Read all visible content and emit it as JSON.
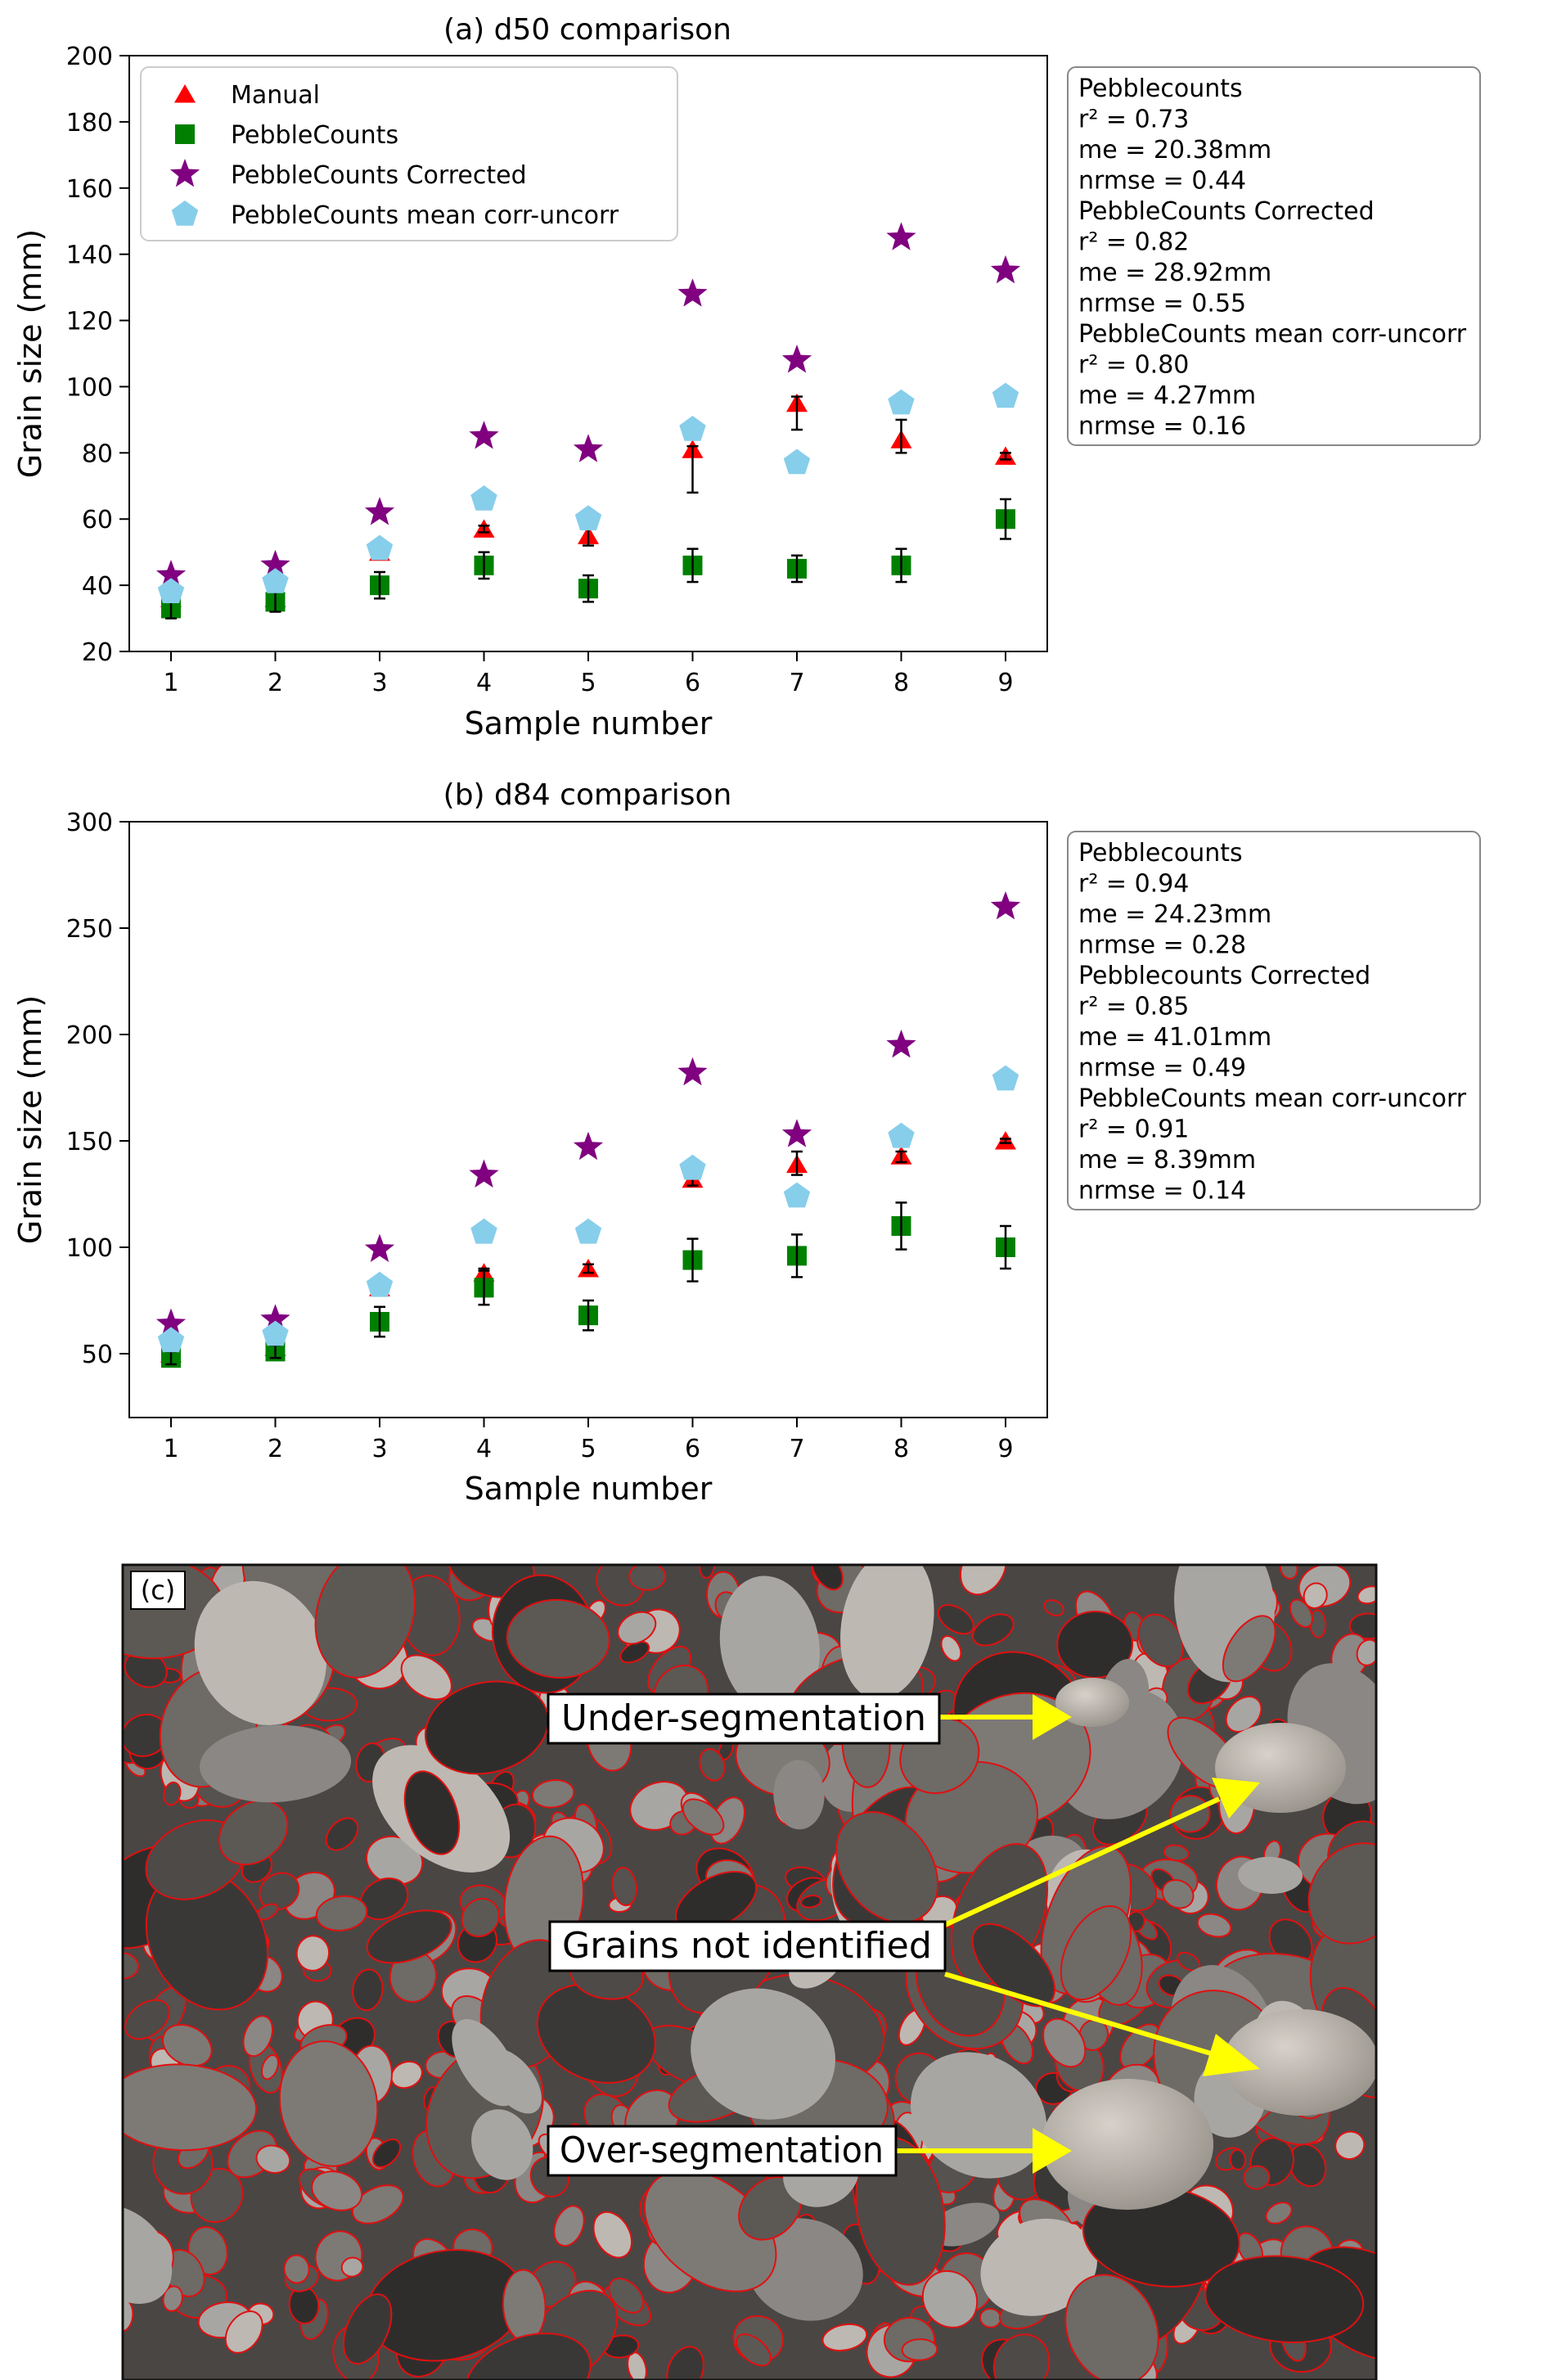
{
  "chart_data": [
    {
      "type": "scatter",
      "title": "(a) d50 comparison",
      "xlabel": "Sample number",
      "ylabel": "Grain size (mm)",
      "xlim": [
        0.6,
        9.4
      ],
      "ylim": [
        20,
        200
      ],
      "xticks": [
        1,
        2,
        3,
        4,
        5,
        6,
        7,
        8,
        9
      ],
      "yticks": [
        20,
        40,
        60,
        80,
        100,
        120,
        140,
        160,
        180,
        200
      ],
      "legend": "top-left",
      "series": [
        {
          "name": "Manual",
          "marker": "triangle",
          "color": "#ff0000",
          "x": [
            1,
            2,
            3,
            4,
            5,
            6,
            7,
            8,
            9
          ],
          "y": [
            36,
            36,
            50,
            57,
            55,
            81,
            95,
            84,
            79
          ],
          "err_low": [
            2,
            2,
            2,
            1,
            3,
            13,
            8,
            4,
            1
          ],
          "err_high": [
            2,
            2,
            2,
            1,
            2,
            1,
            2,
            6,
            1
          ]
        },
        {
          "name": "PebbleCounts",
          "marker": "square",
          "color": "#008000",
          "x": [
            1,
            2,
            3,
            4,
            5,
            6,
            7,
            8,
            9
          ],
          "y": [
            33,
            35,
            40,
            46,
            39,
            46,
            45,
            46,
            60
          ],
          "err_low": [
            3,
            3,
            4,
            4,
            4,
            5,
            4,
            5,
            6
          ],
          "err_high": [
            3,
            3,
            4,
            4,
            4,
            5,
            4,
            5,
            6
          ]
        },
        {
          "name": "PebbleCounts Corrected",
          "marker": "star",
          "color": "#800080",
          "x": [
            1,
            2,
            3,
            4,
            5,
            6,
            7,
            8,
            9
          ],
          "y": [
            43,
            46,
            62,
            85,
            81,
            128,
            108,
            145,
            135
          ]
        },
        {
          "name": "PebbleCounts mean corr-uncorr",
          "marker": "pentagon",
          "color": "#87ceeb",
          "x": [
            1,
            2,
            3,
            4,
            5,
            6,
            7,
            8,
            9
          ],
          "y": [
            38,
            41,
            51,
            66,
            60,
            87,
            77,
            95,
            97
          ]
        }
      ],
      "stats_box": [
        "Pebblecounts",
        "r² = 0.73",
        "me = 20.38mm",
        "nrmse = 0.44",
        "PebbleCounts Corrected",
        "r² = 0.82",
        "me = 28.92mm",
        "nrmse = 0.55",
        "PebbleCounts mean corr-uncorr",
        "r² = 0.80",
        "me = 4.27mm",
        "nrmse = 0.16"
      ]
    },
    {
      "type": "scatter",
      "title": "(b) d84 comparison",
      "xlabel": "Sample number",
      "ylabel": "Grain size (mm)",
      "xlim": [
        0.6,
        9.4
      ],
      "ylim": [
        20,
        300
      ],
      "xticks": [
        1,
        2,
        3,
        4,
        5,
        6,
        7,
        8,
        9
      ],
      "yticks": [
        50,
        100,
        150,
        200,
        250,
        300
      ],
      "legend": "none",
      "series": [
        {
          "name": "Manual",
          "marker": "triangle",
          "color": "#ff0000",
          "x": [
            1,
            2,
            3,
            4,
            5,
            6,
            7,
            8,
            9
          ],
          "y": [
            50,
            53,
            81,
            88,
            90,
            132,
            139,
            143,
            150
          ],
          "err_low": [
            3,
            3,
            2,
            3,
            2,
            3,
            5,
            3,
            1
          ],
          "err_high": [
            3,
            3,
            2,
            2,
            2,
            3,
            6,
            2,
            1
          ]
        },
        {
          "name": "PebbleCounts",
          "marker": "square",
          "color": "#008000",
          "x": [
            1,
            2,
            3,
            4,
            5,
            6,
            7,
            8,
            9
          ],
          "y": [
            48,
            51,
            65,
            81,
            68,
            94,
            96,
            110,
            100
          ],
          "err_low": [
            3,
            3,
            7,
            8,
            7,
            10,
            10,
            11,
            10
          ],
          "err_high": [
            3,
            3,
            7,
            8,
            7,
            10,
            10,
            11,
            10
          ]
        },
        {
          "name": "PebbleCounts Corrected",
          "marker": "star",
          "color": "#800080",
          "x": [
            1,
            2,
            3,
            4,
            5,
            6,
            7,
            8,
            9
          ],
          "y": [
            64,
            66,
            99,
            134,
            147,
            182,
            153,
            195,
            260
          ]
        },
        {
          "name": "PebbleCounts mean corr-uncorr",
          "marker": "pentagon",
          "color": "#87ceeb",
          "x": [
            1,
            2,
            3,
            4,
            5,
            6,
            7,
            8,
            9
          ],
          "y": [
            56,
            59,
            82,
            107,
            107,
            137,
            124,
            152,
            179
          ]
        }
      ],
      "stats_box": [
        "Pebblecounts",
        "r² = 0.94",
        "me = 24.23mm",
        "nrmse = 0.28",
        "Pebblecounts Corrected",
        "r² = 0.85",
        "me = 41.01mm",
        "nrmse = 0.49",
        "PebbleCounts mean corr-uncorr",
        "r² = 0.91",
        "me = 8.39mm",
        "nrmse = 0.14"
      ]
    }
  ],
  "photo_panel": {
    "panel_label": "(c)",
    "annotations": [
      "Under-segmentation",
      "Grains not identified",
      "Over-segmentation"
    ],
    "arrow_color": "#ffff00",
    "outline_color": "#e01010"
  }
}
